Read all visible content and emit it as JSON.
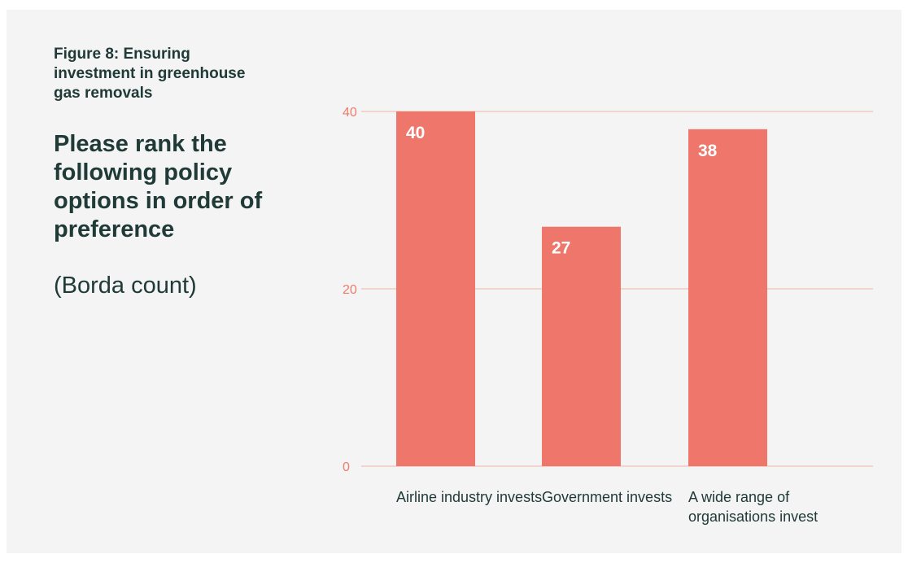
{
  "figure_label": "Figure 8: Ensuring investment in greenhouse gas removals",
  "question": "Please rank the following policy options in order of preference",
  "subnote": "(Borda count)",
  "colors": {
    "bar": "#ee766a",
    "grid": "#f1b3ab",
    "tick": "#ee7b6c",
    "text": "#203a37",
    "background": "#f3f4f3"
  },
  "chart_data": {
    "type": "bar",
    "categories": [
      "Airline industry invests",
      "Government invests",
      "A wide range of organisations invest"
    ],
    "values": [
      40,
      27,
      38
    ],
    "data_labels": [
      "40",
      "27",
      "38"
    ],
    "title": "",
    "xlabel": "",
    "ylabel": "",
    "ylim": [
      0,
      40
    ],
    "yticks": [
      0,
      20,
      40
    ],
    "grid": true,
    "legend": "none"
  }
}
